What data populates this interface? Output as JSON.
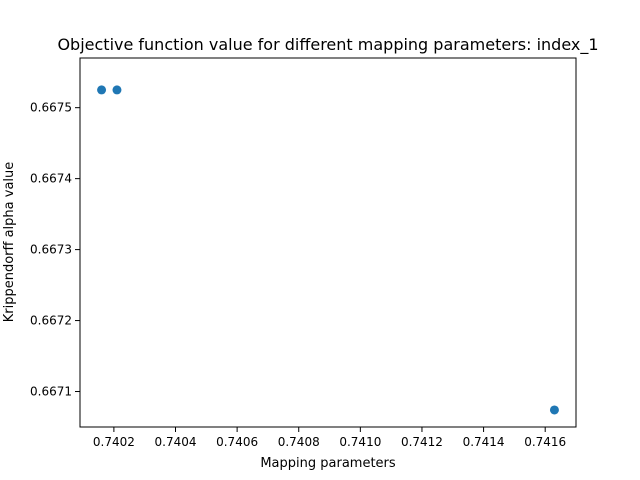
{
  "chart_data": {
    "type": "scatter",
    "title": "Objective function value for different mapping parameters: index_1",
    "xlabel": "Mapping parameters",
    "ylabel": "Krippendorff alpha value",
    "xlim": [
      0.74009,
      0.7417
    ],
    "ylim": [
      0.66705,
      0.66757
    ],
    "xticks": [
      "0.7402",
      "0.7404",
      "0.7406",
      "0.7408",
      "0.7410",
      "0.7412",
      "0.7414",
      "0.7416"
    ],
    "yticks": [
      "0.6671",
      "0.6672",
      "0.6673",
      "0.6674",
      "0.6675"
    ],
    "grid": false,
    "point_color": "#1f77b4",
    "x": [
      0.74016,
      0.74021,
      0.74163
    ],
    "y": [
      0.667525,
      0.667525,
      0.667074
    ]
  }
}
